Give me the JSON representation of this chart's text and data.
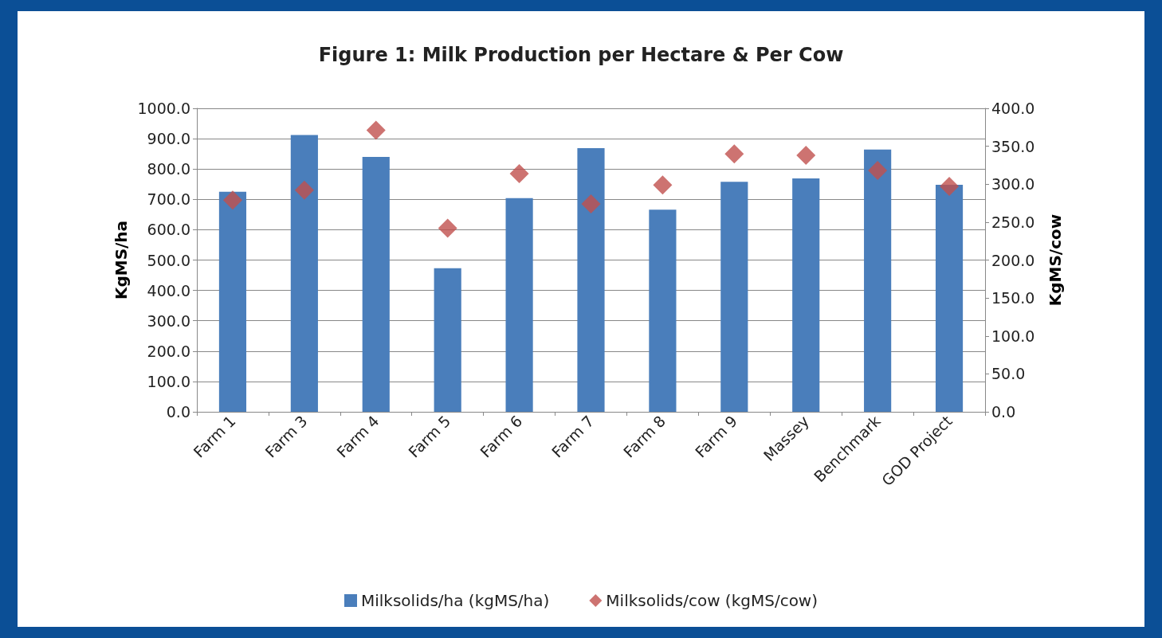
{
  "chart_data": {
    "type": "bar",
    "title": "Figure 1: Milk Production per Hectare & Per Cow",
    "ylabel": "KgMS/ha",
    "y2label": "KgMS/cow",
    "categories": [
      "Farm 1",
      "Farm 3",
      "Farm 4",
      "Farm 5",
      "Farm 6",
      "Farm 7",
      "Farm 8",
      "Farm 9",
      "Massey",
      "Benchmark",
      "GOD Project"
    ],
    "series": [
      {
        "name": "Milksolids/ha (kgMS/ha)",
        "color": "#4a7ebb",
        "values": [
          725,
          912,
          840,
          473,
          704,
          869,
          666,
          758,
          769,
          864,
          748
        ]
      },
      {
        "name": "Milksolids/cow (kgMS/cow)",
        "type": "scatter",
        "axis": "y2",
        "color": "#c0504d",
        "values": [
          279,
          292,
          371,
          242,
          314,
          274,
          299,
          340,
          338,
          318,
          297
        ]
      }
    ],
    "ylim": [
      0,
      1000
    ],
    "yticks": [
      {
        "value": 0,
        "label": "0.0"
      },
      {
        "value": 100,
        "label": "100.0"
      },
      {
        "value": 200,
        "label": "200.0"
      },
      {
        "value": 300,
        "label": "300.0"
      },
      {
        "value": 400,
        "label": "400.0"
      },
      {
        "value": 500,
        "label": "500.0"
      },
      {
        "value": 600,
        "label": "600.0"
      },
      {
        "value": 700,
        "label": "700.0"
      },
      {
        "value": 800,
        "label": "800.0"
      },
      {
        "value": 900,
        "label": "900.0"
      },
      {
        "value": 1000,
        "label": "1000.0"
      }
    ],
    "y2lim": [
      0,
      400
    ],
    "y2ticks": [
      {
        "value": 0,
        "label": "0.0"
      },
      {
        "value": 50,
        "label": "50.0"
      },
      {
        "value": 100,
        "label": "100.0"
      },
      {
        "value": 150,
        "label": "150.0"
      },
      {
        "value": 200,
        "label": "200.0"
      },
      {
        "value": 250,
        "label": "250.0"
      },
      {
        "value": 300,
        "label": "300.0"
      },
      {
        "value": 350,
        "label": "350.0"
      },
      {
        "value": 400,
        "label": "400.0"
      }
    ],
    "grid": "y",
    "legend": "bottom",
    "marker": "diamond"
  }
}
